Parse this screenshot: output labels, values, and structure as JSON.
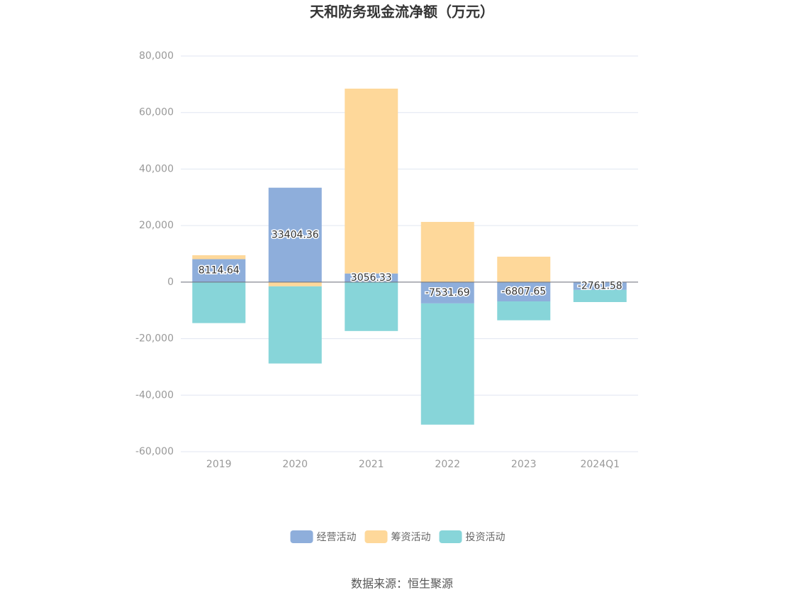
{
  "chart_data": {
    "type": "bar",
    "stacked": true,
    "title": "天和防务现金流净额（万元）",
    "categories": [
      "2019",
      "2020",
      "2021",
      "2022",
      "2023",
      "2024Q1"
    ],
    "series": [
      {
        "name": "经营活动",
        "color": "#8eaedb",
        "values": [
          8114.64,
          33404.36,
          3056.33,
          -7531.69,
          -6807.65,
          -2761.58
        ],
        "labels": true
      },
      {
        "name": "筹资活动",
        "color": "#fed89a",
        "values": [
          1400,
          -1500,
          65400,
          21300,
          9000,
          null
        ]
      },
      {
        "name": "投资活动",
        "color": "#87d5d9",
        "values": [
          -14500,
          -27300,
          -17300,
          -42900,
          -6700,
          -4300
        ]
      }
    ],
    "ylim": [
      -60000,
      80000
    ],
    "yticks": [
      {
        "value": -60000,
        "label": "-60,000"
      },
      {
        "value": -40000,
        "label": "-40,000"
      },
      {
        "value": -20000,
        "label": "-20,000"
      },
      0,
      {
        "value": 20000,
        "label": "20,000"
      },
      {
        "value": 40000,
        "label": "40,000"
      },
      {
        "value": 60000,
        "label": "60,000"
      },
      {
        "value": 80000,
        "label": "80,000"
      }
    ],
    "grid": true,
    "source": "数据来源：恒生聚源"
  }
}
